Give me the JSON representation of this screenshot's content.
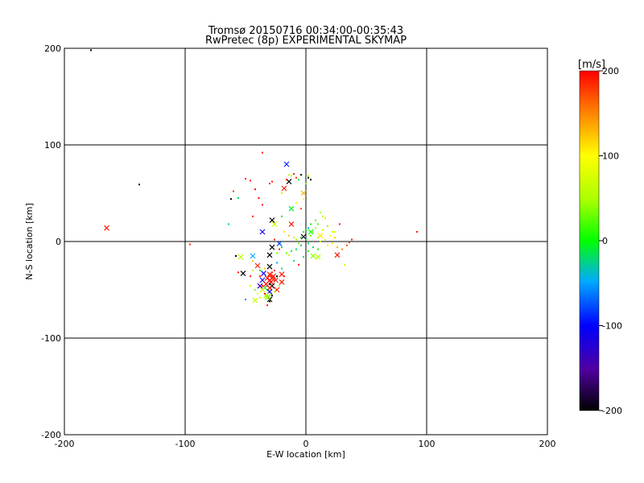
{
  "chart_data": {
    "type": "scatter",
    "title": "Tromsø 20150716 00:34:00-00:35:43",
    "subtitle": "RwPretec (8p) EXPERIMENTAL SKYMAP",
    "xlabel": "E-W location [km]",
    "ylabel": "N-S location [km]",
    "xlim": [
      -200,
      200
    ],
    "ylim": [
      -200,
      200
    ],
    "xticks": [
      -200,
      -100,
      0,
      100,
      200
    ],
    "yticks": [
      -200,
      -100,
      0,
      100,
      200
    ],
    "x_tick_labels": [
      "-200",
      "-100",
      "0",
      "100",
      "200"
    ],
    "y_tick_labels": [
      "-200",
      "-100",
      "0",
      "100",
      "200"
    ],
    "grid": true,
    "colorbar": {
      "label": "[m/s]",
      "range": [
        -200,
        200
      ],
      "ticks": [
        200,
        100,
        0,
        -100,
        -200
      ],
      "tick_labels": [
        "200",
        "100",
        "0",
        "-100",
        "-200"
      ]
    },
    "series": [
      {
        "marker": "x",
        "points": [
          [
            -165,
            14,
            190
          ],
          [
            -16,
            80,
            -90
          ],
          [
            -14,
            62,
            -200
          ],
          [
            -18,
            55,
            190
          ],
          [
            -2,
            50,
            130
          ],
          [
            -28,
            22,
            -200
          ],
          [
            -12,
            18,
            190
          ],
          [
            -12,
            34,
            -10
          ],
          [
            -26,
            18,
            70
          ],
          [
            -36,
            10,
            -110
          ],
          [
            -22,
            -2,
            -80
          ],
          [
            -28,
            -6,
            -200
          ],
          [
            -30,
            -14,
            -200
          ],
          [
            -44,
            -15,
            -50
          ],
          [
            -54,
            -16,
            60
          ],
          [
            -40,
            -25,
            190
          ],
          [
            -30,
            -26,
            -200
          ],
          [
            -52,
            -33,
            -200
          ],
          [
            -35,
            -33,
            -110
          ],
          [
            -30,
            -34,
            190
          ],
          [
            -27,
            -36,
            190
          ],
          [
            -32,
            -38,
            190
          ],
          [
            -36,
            -40,
            -110
          ],
          [
            -25,
            -40,
            190
          ],
          [
            -29,
            -42,
            200
          ],
          [
            -33,
            -44,
            190
          ],
          [
            -38,
            -46,
            -140
          ],
          [
            -28,
            -46,
            -200
          ],
          [
            -30,
            -48,
            190
          ],
          [
            -34,
            -48,
            -10
          ],
          [
            -36,
            -50,
            80
          ],
          [
            -30,
            -52,
            -110
          ],
          [
            -24,
            -50,
            190
          ],
          [
            -33,
            -56,
            60
          ],
          [
            -31,
            -57,
            40
          ],
          [
            -30,
            -60,
            -200
          ],
          [
            -42,
            -61,
            70
          ],
          [
            -32,
            -58,
            40
          ],
          [
            -20,
            -42,
            190
          ],
          [
            -20,
            -34,
            190
          ],
          [
            12,
            6,
            110
          ],
          [
            26,
            -14,
            190
          ],
          [
            10,
            -16,
            60
          ],
          [
            4,
            10,
            0
          ],
          [
            -2,
            5,
            -200
          ],
          [
            6,
            -15,
            40
          ],
          [
            -30,
            -40,
            200
          ],
          [
            -28,
            -38,
            190
          ]
        ]
      },
      {
        "marker": "dot",
        "points": [
          [
            -178,
            198,
            -200
          ],
          [
            -138,
            59,
            -200
          ],
          [
            -96,
            -3,
            180
          ],
          [
            92,
            10,
            190
          ],
          [
            -36,
            92,
            190
          ],
          [
            -42,
            54,
            200
          ],
          [
            -39,
            45,
            200
          ],
          [
            -46,
            63,
            190
          ],
          [
            -50,
            65,
            190
          ],
          [
            -56,
            45,
            -20
          ],
          [
            -62,
            44,
            -200
          ],
          [
            -64,
            18,
            -20
          ],
          [
            -60,
            52,
            180
          ],
          [
            -10,
            70,
            190
          ],
          [
            -8,
            66,
            180
          ],
          [
            -4,
            69,
            -200
          ],
          [
            2,
            66,
            -200
          ],
          [
            4,
            64,
            -200
          ],
          [
            -6,
            64,
            -10
          ],
          [
            0,
            60,
            40
          ],
          [
            2,
            68,
            50
          ],
          [
            -12,
            68,
            60
          ],
          [
            -14,
            69,
            60
          ],
          [
            -16,
            64,
            190
          ],
          [
            -28,
            62,
            190
          ],
          [
            -30,
            60,
            190
          ],
          [
            -20,
            50,
            60
          ],
          [
            -8,
            40,
            90
          ],
          [
            -2,
            44,
            100
          ],
          [
            -4,
            34,
            170
          ],
          [
            -36,
            38,
            190
          ],
          [
            -44,
            26,
            190
          ],
          [
            -20,
            26,
            -10
          ],
          [
            -18,
            10,
            110
          ],
          [
            -14,
            6,
            120
          ],
          [
            -10,
            4,
            60
          ],
          [
            -8,
            2,
            50
          ],
          [
            -6,
            -2,
            40
          ],
          [
            -4,
            4,
            0
          ],
          [
            -2,
            10,
            0
          ],
          [
            0,
            12,
            -10
          ],
          [
            0,
            2,
            -10
          ],
          [
            2,
            -2,
            -20
          ],
          [
            4,
            6,
            30
          ],
          [
            6,
            10,
            40
          ],
          [
            8,
            14,
            50
          ],
          [
            10,
            4,
            60
          ],
          [
            12,
            0,
            60
          ],
          [
            14,
            12,
            70
          ],
          [
            16,
            2,
            80
          ],
          [
            18,
            -4,
            90
          ],
          [
            20,
            6,
            100
          ],
          [
            22,
            -2,
            110
          ],
          [
            24,
            4,
            120
          ],
          [
            26,
            -6,
            130
          ],
          [
            28,
            18,
            190
          ],
          [
            30,
            -8,
            150
          ],
          [
            32,
            -24,
            70
          ],
          [
            34,
            -4,
            170
          ],
          [
            36,
            -1,
            180
          ],
          [
            38,
            2,
            190
          ],
          [
            14,
            26,
            60
          ],
          [
            16,
            24,
            70
          ],
          [
            10,
            18,
            20
          ],
          [
            4,
            18,
            -10
          ],
          [
            2,
            14,
            -40
          ],
          [
            6,
            -6,
            -20
          ],
          [
            -4,
            -4,
            -30
          ],
          [
            -8,
            -8,
            -20
          ],
          [
            -12,
            -10,
            -10
          ],
          [
            -16,
            -12,
            30
          ],
          [
            -20,
            -6,
            -20
          ],
          [
            -24,
            -12,
            40
          ],
          [
            -14,
            -14,
            60
          ],
          [
            -10,
            -20,
            -20
          ],
          [
            -6,
            -24,
            190
          ],
          [
            -2,
            -16,
            -10
          ],
          [
            2,
            -10,
            0
          ],
          [
            10,
            -8,
            10
          ],
          [
            -58,
            -15,
            -200
          ],
          [
            -56,
            -32,
            190
          ],
          [
            -44,
            -20,
            120
          ],
          [
            -50,
            -60,
            -60
          ],
          [
            -46,
            -46,
            60
          ],
          [
            -42,
            -50,
            40
          ],
          [
            -40,
            -54,
            80
          ],
          [
            -38,
            -58,
            60
          ],
          [
            -34,
            -54,
            190
          ],
          [
            -26,
            -52,
            60
          ],
          [
            -22,
            -46,
            60
          ],
          [
            -18,
            -36,
            190
          ],
          [
            -20,
            -28,
            -20
          ],
          [
            -24,
            -22,
            -50
          ],
          [
            -38,
            -36,
            190
          ],
          [
            -34,
            -28,
            120
          ],
          [
            -26,
            -30,
            190
          ],
          [
            -30,
            -44,
            -200
          ],
          [
            -32,
            -46,
            190
          ],
          [
            -36,
            -46,
            190
          ],
          [
            -28,
            -32,
            190
          ],
          [
            -24,
            -36,
            -200
          ],
          [
            -38,
            -30,
            -10
          ],
          [
            -44,
            -30,
            60
          ],
          [
            -46,
            -36,
            190
          ],
          [
            -30,
            -62,
            -200
          ],
          [
            -28,
            -56,
            -200
          ],
          [
            -32,
            -66,
            190
          ],
          [
            -22,
            -8,
            190
          ],
          [
            -26,
            2,
            190
          ],
          [
            18,
            16,
            40
          ],
          [
            22,
            10,
            60
          ],
          [
            8,
            22,
            20
          ],
          [
            12,
            30,
            50
          ],
          [
            24,
            10,
            80
          ]
        ]
      }
    ]
  }
}
